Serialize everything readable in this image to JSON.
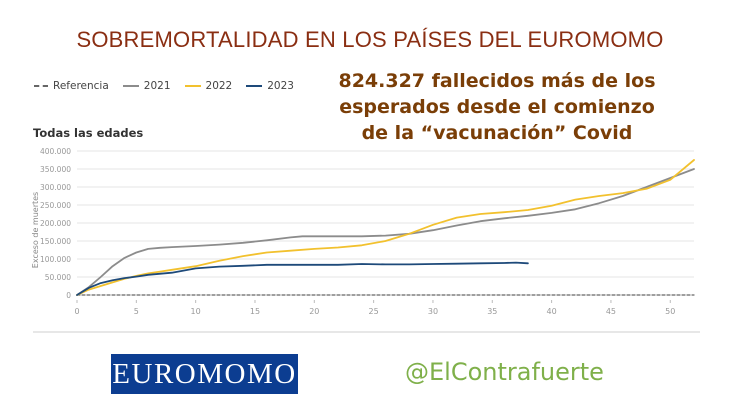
{
  "page_title": "SOBREMORTALIDAD EN LOS PAÍSES DEL EUROMOMO",
  "callout_lines": [
    "824.327 fallecidos más de los",
    "esperados desde el comienzo",
    "de la “vacunación” Covid"
  ],
  "logo_text": "EUROMOMO",
  "handle": "@ElContrafuerte",
  "chart_data": {
    "type": "line",
    "title": "Todas las edades",
    "xlabel": "",
    "ylabel": "Exceso de muertes",
    "xlim": [
      0,
      52
    ],
    "ylim": [
      0,
      400000
    ],
    "x_ticks": [
      0,
      5,
      10,
      15,
      20,
      25,
      30,
      35,
      40,
      45,
      50
    ],
    "y_ticks": [
      0,
      50000,
      100000,
      150000,
      200000,
      250000,
      300000,
      350000,
      400000
    ],
    "y_tick_labels": [
      "0",
      "50.000",
      "100.000",
      "150.000",
      "200.000",
      "250.000",
      "300.000",
      "350.000",
      "400.000"
    ],
    "grid": "horizontal",
    "legend_position": "top-left",
    "series": [
      {
        "name": "Referencia",
        "color": "#666666",
        "style": "dashed",
        "x": [
          0,
          52
        ],
        "y": [
          0,
          0
        ]
      },
      {
        "name": "2021",
        "color": "#8c8c8c",
        "style": "solid",
        "x": [
          0,
          1,
          2,
          3,
          4,
          5,
          6,
          7,
          8,
          10,
          12,
          14,
          16,
          18,
          19,
          20,
          22,
          24,
          26,
          28,
          30,
          32,
          34,
          36,
          38,
          40,
          42,
          44,
          46,
          48,
          50,
          52
        ],
        "y": [
          0,
          22000,
          50000,
          80000,
          103000,
          118000,
          128000,
          131000,
          133000,
          136000,
          140000,
          145000,
          152000,
          160000,
          163000,
          163000,
          163000,
          163000,
          165000,
          170000,
          180000,
          193000,
          205000,
          213000,
          220000,
          228000,
          238000,
          255000,
          275000,
          300000,
          325000,
          350000
        ]
      },
      {
        "name": "2022",
        "color": "#f2c12e",
        "style": "solid",
        "x": [
          0,
          1,
          2,
          3,
          4,
          5,
          6,
          7,
          8,
          10,
          12,
          14,
          16,
          18,
          20,
          22,
          24,
          26,
          27,
          28,
          30,
          32,
          34,
          36,
          38,
          40,
          42,
          44,
          46,
          48,
          50,
          52
        ],
        "y": [
          0,
          15000,
          25000,
          35000,
          45000,
          53000,
          60000,
          65000,
          70000,
          80000,
          95000,
          108000,
          118000,
          123000,
          128000,
          132000,
          138000,
          150000,
          160000,
          170000,
          195000,
          215000,
          225000,
          230000,
          236000,
          248000,
          265000,
          275000,
          283000,
          295000,
          320000,
          375000
        ]
      },
      {
        "name": "2023",
        "color": "#1e4a7a",
        "style": "solid",
        "x": [
          0,
          1,
          2,
          3,
          4,
          5,
          6,
          8,
          10,
          12,
          14,
          16,
          18,
          20,
          22,
          24,
          26,
          28,
          30,
          32,
          34,
          36,
          37,
          38
        ],
        "y": [
          0,
          20000,
          33000,
          41000,
          47000,
          51000,
          56000,
          62000,
          74000,
          79000,
          81000,
          84000,
          84000,
          84000,
          84000,
          86000,
          85000,
          85000,
          86000,
          87000,
          88000,
          89000,
          90000,
          88000
        ]
      }
    ]
  }
}
